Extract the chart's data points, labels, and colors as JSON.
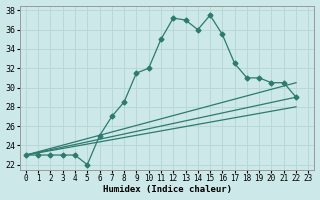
{
  "xlabel": "Humidex (Indice chaleur)",
  "background_color": "#cce8e8",
  "grid_color": "#b8d8d8",
  "line_color": "#2d7a6e",
  "xlim": [
    -0.5,
    23.5
  ],
  "ylim": [
    21.5,
    38.5
  ],
  "yticks": [
    22,
    24,
    26,
    28,
    30,
    32,
    34,
    36,
    38
  ],
  "xticks": [
    0,
    1,
    2,
    3,
    4,
    5,
    6,
    7,
    8,
    9,
    10,
    11,
    12,
    13,
    14,
    15,
    16,
    17,
    18,
    19,
    20,
    21,
    22,
    23
  ],
  "curve_x": [
    0,
    1,
    2,
    3,
    4,
    5,
    6,
    7,
    8,
    9,
    10,
    11,
    12,
    13,
    14,
    15,
    16,
    17,
    18,
    19,
    20,
    21,
    22
  ],
  "curve_y": [
    23,
    23,
    23,
    23,
    23,
    22,
    25,
    27,
    28.5,
    31.5,
    32,
    35,
    37.2,
    37,
    36,
    37.5,
    35.5,
    32.5,
    31,
    31,
    30.5,
    30.5,
    29
  ],
  "line1_x": [
    0,
    22
  ],
  "line1_y": [
    23,
    29
  ],
  "line2_x": [
    0,
    22
  ],
  "line2_y": [
    23,
    30.5
  ],
  "line3_x": [
    0,
    22
  ],
  "line3_y": [
    23,
    28
  ]
}
